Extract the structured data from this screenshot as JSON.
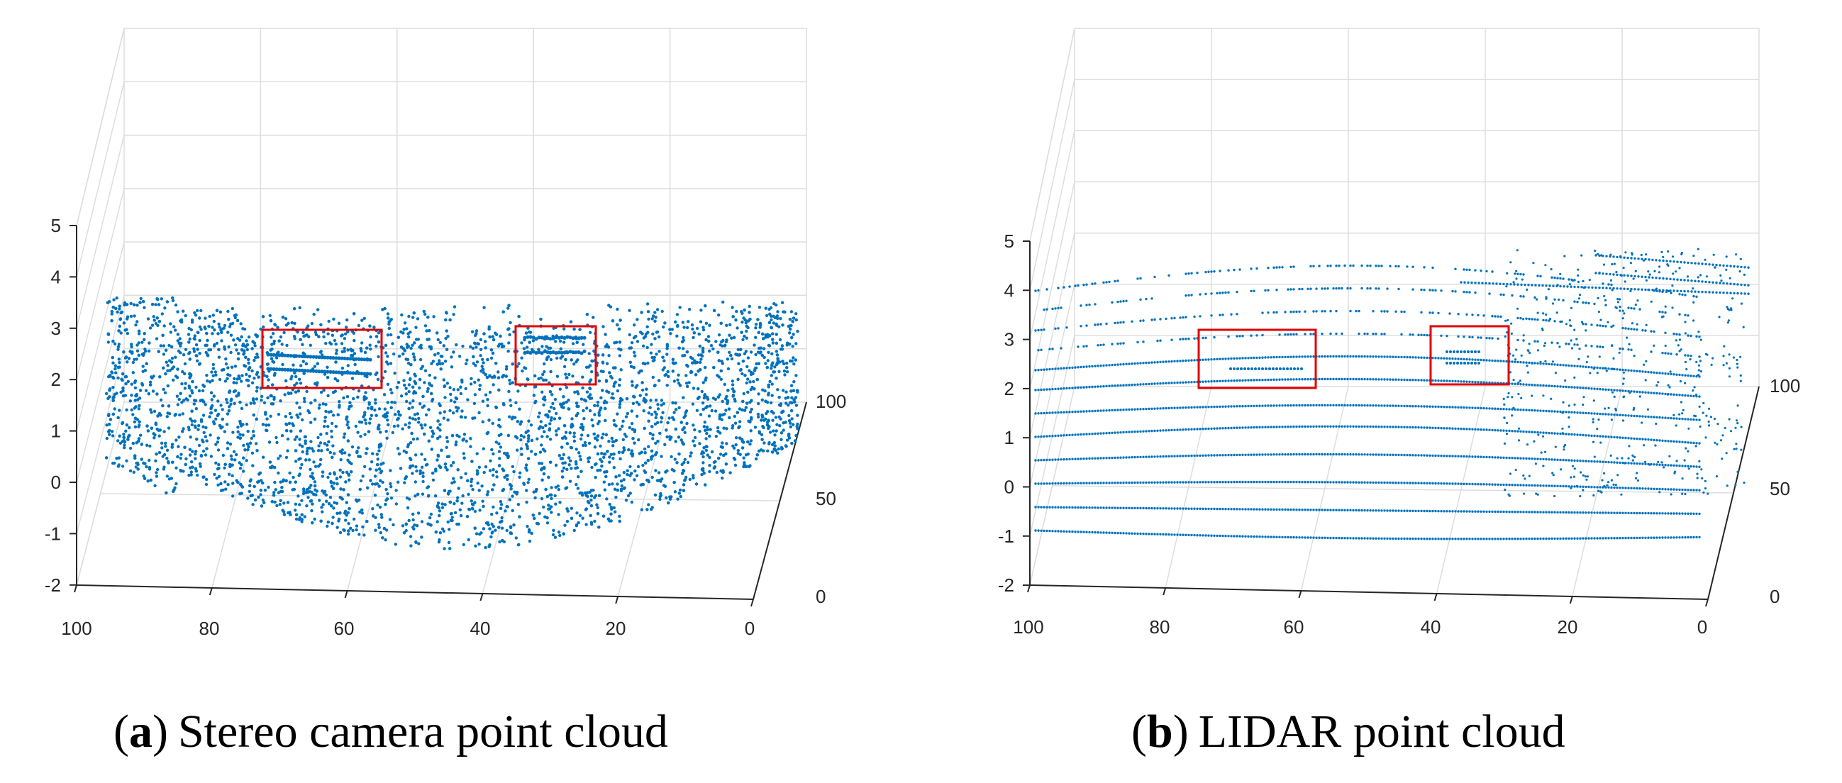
{
  "chart_data": [
    {
      "type": "scatter",
      "subtype": "3d-point-cloud",
      "caption_letter": "a",
      "caption_text": "Stereo camera point cloud",
      "xlim": [
        0,
        100
      ],
      "ylim": [
        0,
        100
      ],
      "zlim": [
        -2,
        5
      ],
      "x_ticks": [
        "100",
        "80",
        "60",
        "40",
        "20",
        "0"
      ],
      "y_ticks": [
        "100",
        "50",
        "0"
      ],
      "z_ticks": [
        "5",
        "4",
        "3",
        "2",
        "1",
        "0",
        "-1",
        "-2"
      ],
      "grid": true,
      "point_color": "#0072BD",
      "highlight_color": "#E00000",
      "highlight_boxes": 2
    },
    {
      "type": "scatter",
      "subtype": "3d-point-cloud",
      "caption_letter": "b",
      "caption_text": "LIDAR point cloud",
      "xlim": [
        0,
        100
      ],
      "ylim": [
        0,
        100
      ],
      "zlim": [
        -2,
        5
      ],
      "x_ticks": [
        "100",
        "80",
        "60",
        "40",
        "20",
        "0"
      ],
      "y_ticks": [
        "100",
        "50",
        "0"
      ],
      "z_ticks": [
        "5",
        "4",
        "3",
        "2",
        "1",
        "0",
        "-1",
        "-2"
      ],
      "grid": true,
      "point_color": "#0072BD",
      "highlight_color": "#E00000",
      "highlight_boxes": 2
    }
  ]
}
